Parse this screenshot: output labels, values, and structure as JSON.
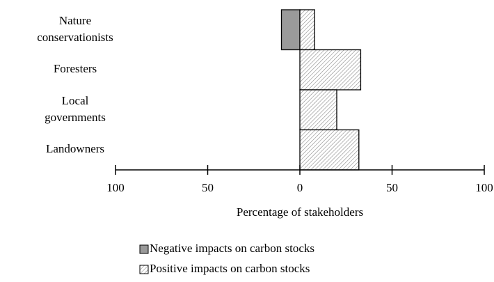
{
  "chart_data": {
    "type": "diverging-bar",
    "categories": [
      "Nature conservationists",
      "Foresters",
      "Local governments",
      "Landowners"
    ],
    "series": [
      {
        "name": "Negative impacts on carbon stocks",
        "color": "#9a9a9a",
        "values": [
          -10,
          null,
          null,
          null
        ]
      },
      {
        "name": "Positive impacts on carbon stocks",
        "color": "#ffffff",
        "pattern": "diagonal-hatch",
        "values": [
          8,
          33,
          20,
          32
        ]
      }
    ],
    "xlabel": "Percentage of stakeholders",
    "xlim": [
      -100,
      100
    ],
    "xticks": [
      {
        "value": -100,
        "label": "100"
      },
      {
        "value": -50,
        "label": "50"
      },
      0,
      50,
      100
    ],
    "legend": "bottom"
  }
}
